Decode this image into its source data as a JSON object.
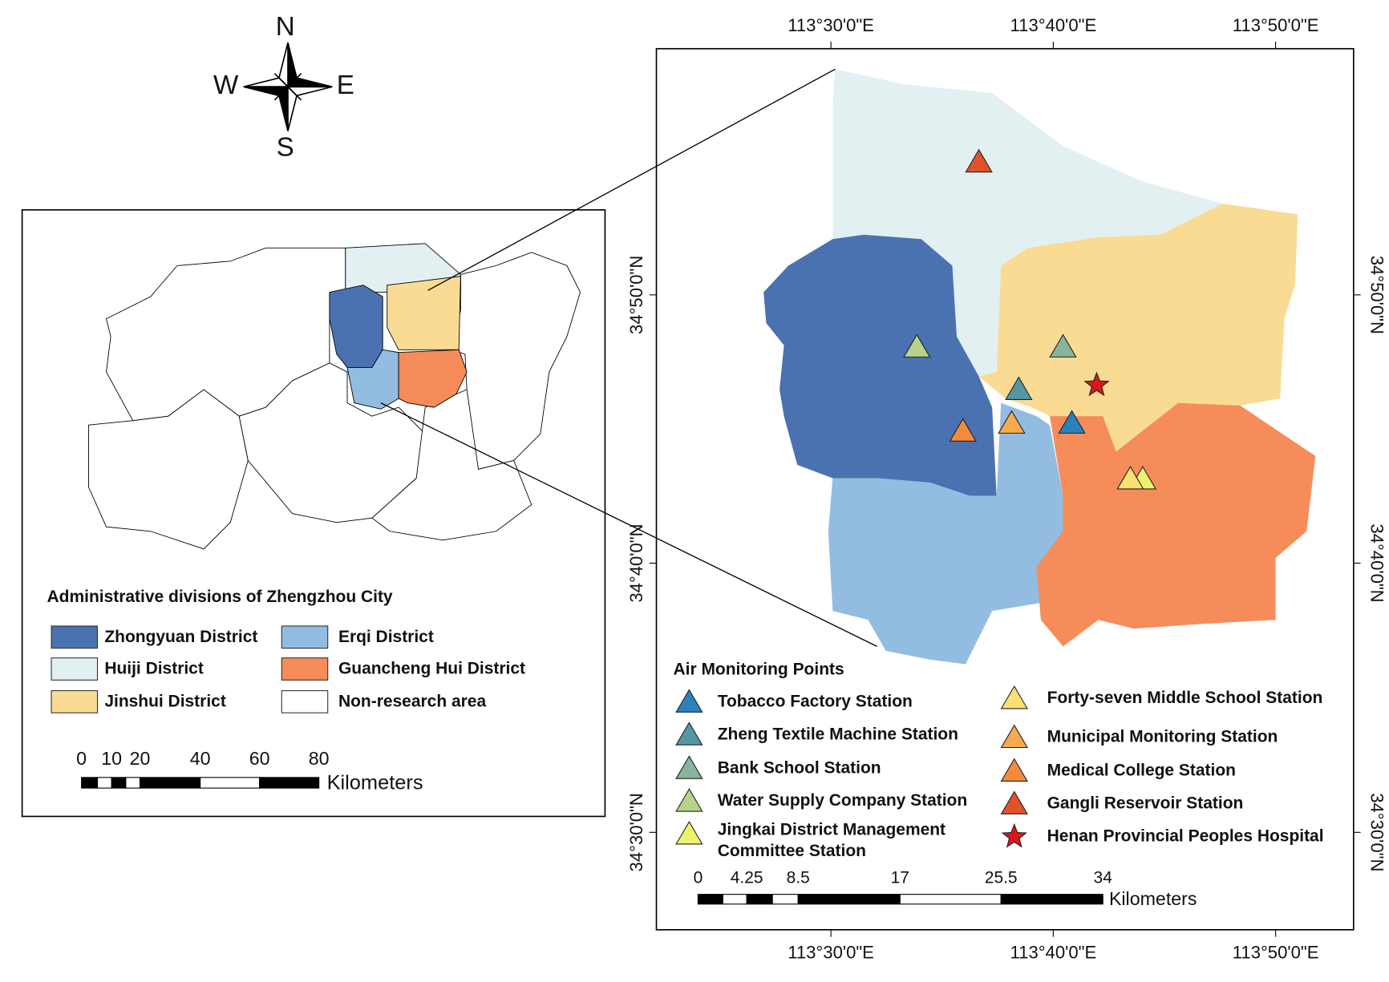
{
  "compass": {
    "north": "N",
    "east": "E",
    "south": "S",
    "west": "W"
  },
  "inset": {
    "legend_title": "Administrative divisions of Zhengzhou City",
    "legend_items": [
      {
        "label": "Zhongyuan District",
        "color": "#4a72b0"
      },
      {
        "label": "Huiji District",
        "color": "#e3f0f2"
      },
      {
        "label": "Jinshui District",
        "color": "#f9db94"
      },
      {
        "label": "Erqi District",
        "color": "#92bde0"
      },
      {
        "label": "Guancheng Hui District",
        "color": "#f58c5a"
      },
      {
        "label": "Non-research area",
        "color": "#ffffff"
      }
    ],
    "scale_labels": [
      "0",
      "10",
      "20",
      "40",
      "60",
      "80"
    ],
    "scale_unit": "Kilometers"
  },
  "main_map": {
    "longitude_labels": [
      "113°30'0\"E",
      "113°40'0\"E",
      "113°50'0\"E"
    ],
    "latitude_labels": [
      "34°30'0\"N",
      "34°40'0\"N",
      "34°50'0\"N"
    ],
    "legend_title": "Air Monitoring Points",
    "stations": [
      {
        "label_lines": [
          "Tobacco Factory Station"
        ],
        "color": "#2a82bd"
      },
      {
        "label_lines": [
          "Zheng Textile Machine Station"
        ],
        "color": "#5596a5"
      },
      {
        "label_lines": [
          "Bank School Station"
        ],
        "color": "#88b49b"
      },
      {
        "label_lines": [
          "Water Supply Company Station"
        ],
        "color": "#b7d28b"
      },
      {
        "label_lines": [
          "Jingkai District Management",
          "Committee Station"
        ],
        "color": "#edf26e"
      },
      {
        "label_lines": [
          "Forty-seven Middle School Station"
        ],
        "color": "#fde073"
      },
      {
        "label_lines": [
          "Municipal Monitoring Station"
        ],
        "color": "#f7a94d"
      },
      {
        "label_lines": [
          "Medical College Station"
        ],
        "color": "#f38a3d"
      },
      {
        "label_lines": [
          "Gangli Reservoir Station"
        ],
        "color": "#e0522a"
      },
      {
        "label_lines": [
          "Henan Provincial Peoples Hospital"
        ],
        "color": "#d7191c"
      }
    ],
    "scale_labels": [
      "0",
      "4.25",
      "8.5",
      "17",
      "25.5",
      "34"
    ],
    "scale_unit": "Kilometers"
  }
}
